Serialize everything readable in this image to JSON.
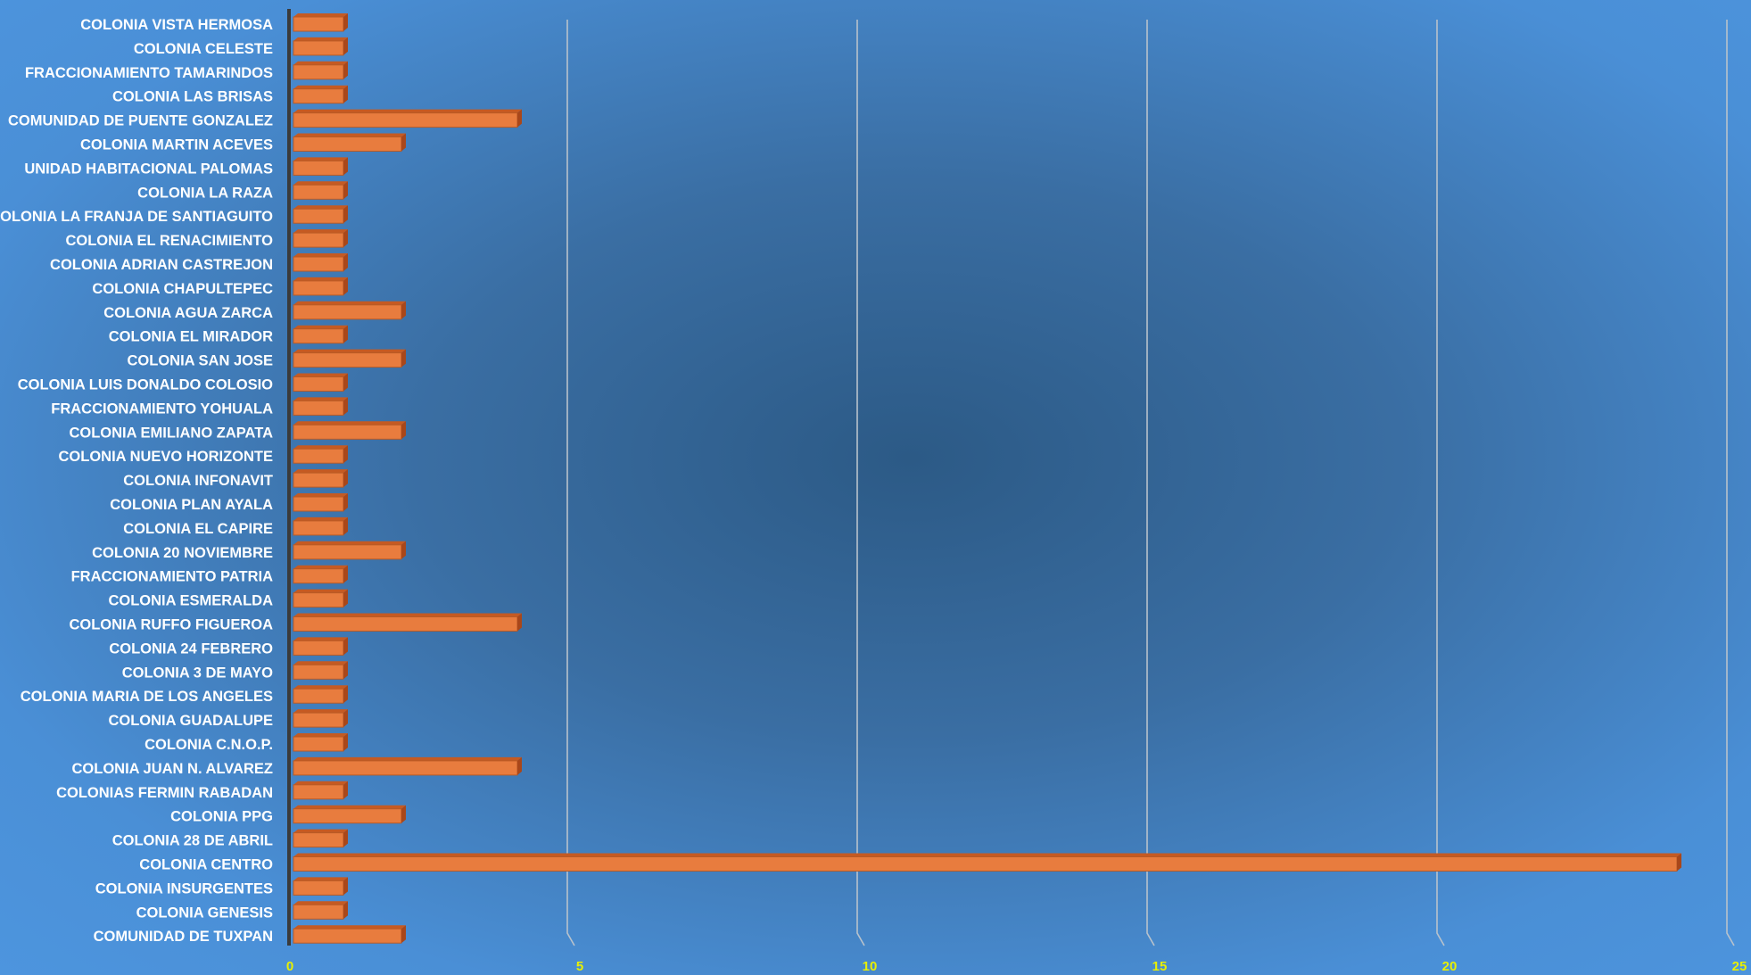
{
  "chart_data": {
    "type": "bar",
    "orientation": "horizontal",
    "style": "3d",
    "title": "",
    "xlabel": "",
    "ylabel": "",
    "xlim": [
      0,
      25
    ],
    "x_ticks": [
      0,
      5,
      10,
      15,
      20,
      25
    ],
    "grid": true,
    "legend": "none",
    "colors": {
      "bar": "#e87c3e",
      "bar_side": "#a9471a",
      "bar_top": "#c55a22",
      "gridline": "#b8c2cc",
      "tick_label": "#e8f000",
      "category_label": "#ffffff",
      "axis": "#3a3a3a"
    },
    "categories": [
      "COLONIA VISTA HERMOSA",
      "COLONIA CELESTE",
      "FRACCIONAMIENTO TAMARINDOS",
      "COLONIA LAS BRISAS",
      "COMUNIDAD DE PUENTE GONZALEZ",
      "COLONIA MARTIN ACEVES",
      "UNIDAD HABITACIONAL PALOMAS",
      "COLONIA LA RAZA",
      "COLONIA LA FRANJA DE SANTIAGUITO",
      "COLONIA EL RENACIMIENTO",
      "COLONIA ADRIAN CASTREJON",
      "COLONIA CHAPULTEPEC",
      "COLONIA AGUA ZARCA",
      "COLONIA EL MIRADOR",
      "COLONIA SAN JOSE",
      "COLONIA LUIS DONALDO COLOSIO",
      "FRACCIONAMIENTO YOHUALA",
      "COLONIA EMILIANO ZAPATA",
      "COLONIA NUEVO HORIZONTE",
      "COLONIA INFONAVIT",
      "COLONIA PLAN AYALA",
      "COLONIA EL CAPIRE",
      "COLONIA 20 NOVIEMBRE",
      "FRACCIONAMIENTO PATRIA",
      "COLONIA ESMERALDA",
      "COLONIA RUFFO FIGUEROA",
      "COLONIA 24 FEBRERO",
      "COLONIA 3 DE MAYO",
      "COLONIA MARIA DE LOS ANGELES",
      "COLONIA GUADALUPE",
      "COLONIA C.N.O.P.",
      "COLONIA JUAN N. ALVAREZ",
      "COLONIAS FERMIN RABADAN",
      "COLONIA PPG",
      "COLONIA 28 DE ABRIL",
      "COLONIA CENTRO",
      "COLONIA INSURGENTES",
      "COLONIA GENESIS",
      "COMUNIDAD DE TUXPAN"
    ],
    "values": [
      1,
      1,
      1,
      1,
      4,
      2,
      1,
      1,
      1,
      1,
      1,
      1,
      2,
      1,
      2,
      1,
      1,
      2,
      1,
      1,
      1,
      1,
      2,
      1,
      1,
      4,
      1,
      1,
      1,
      1,
      1,
      4,
      1,
      2,
      1,
      24,
      1,
      1,
      2
    ]
  }
}
